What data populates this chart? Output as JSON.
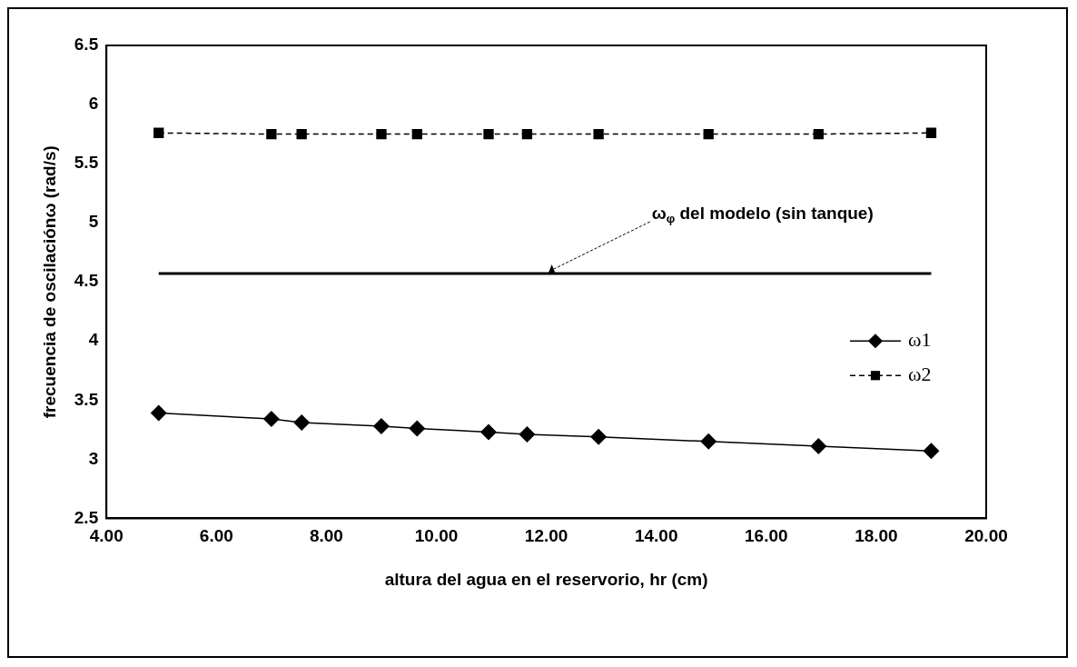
{
  "chart_data": {
    "type": "line",
    "xlabel": "altura del agua en el reservorio, hr (cm)",
    "ylabel": "frecuencia de oscilaciónω (rad/s)",
    "xlim": [
      4,
      20
    ],
    "xticks": [
      {
        "value": 4,
        "label": "4.00"
      },
      {
        "value": 6,
        "label": "6.00"
      },
      {
        "value": 8,
        "label": "8.00"
      },
      {
        "value": 10,
        "label": "10.00"
      },
      {
        "value": 12,
        "label": "12.00"
      },
      {
        "value": 14,
        "label": "14.00"
      },
      {
        "value": 16,
        "label": "16.00"
      },
      {
        "value": 18,
        "label": "18.00"
      },
      {
        "value": 20,
        "label": "20.00"
      }
    ],
    "ylim": [
      2.5,
      6.5
    ],
    "yticks": [
      2.5,
      3,
      3.5,
      4,
      4.5,
      5,
      5.5,
      6,
      6.5
    ],
    "x": [
      4.95,
      7.0,
      7.55,
      9.0,
      9.65,
      10.95,
      11.65,
      12.95,
      14.95,
      16.95,
      19.0
    ],
    "series": [
      {
        "name": "ω1",
        "color": "#000000",
        "marker": "diamond",
        "line_style": "solid",
        "values": [
          3.39,
          3.34,
          3.31,
          3.28,
          3.26,
          3.23,
          3.21,
          3.19,
          3.15,
          3.11,
          3.07
        ]
      },
      {
        "name": "ω2",
        "color": "#000000",
        "marker": "square",
        "line_style": "dashed",
        "values": [
          5.76,
          5.75,
          5.75,
          5.75,
          5.75,
          5.75,
          5.75,
          5.75,
          5.75,
          5.75,
          5.76
        ]
      },
      {
        "color": "#000000",
        "marker": "none",
        "line_style": "solid",
        "x": [
          4.95,
          19.0
        ],
        "values": [
          4.57,
          4.57
        ]
      }
    ],
    "annotations": [
      {
        "text": "ω$_{φ}$ del modelo (sin tanque)",
        "x": 12.1,
        "y": 4.57
      }
    ],
    "legend": "right",
    "grid": false
  }
}
